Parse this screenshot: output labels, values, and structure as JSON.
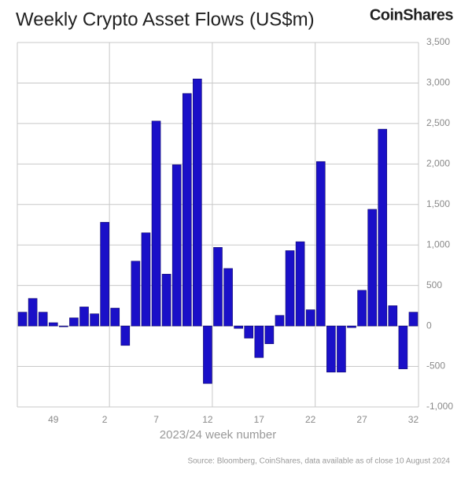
{
  "chart_data": {
    "type": "bar",
    "title": "Weekly Crypto Asset Flows (US$m)",
    "brand": "CoinShares",
    "x_label": "2023/24 week number",
    "source": "Source: Bloomberg, CoinShares, data available as of close 10 August 2024",
    "categories": [
      null,
      null,
      null,
      "49",
      null,
      null,
      null,
      null,
      "2",
      null,
      null,
      null,
      null,
      "7",
      null,
      null,
      null,
      null,
      "12",
      null,
      null,
      null,
      null,
      "17",
      null,
      null,
      null,
      null,
      "22",
      null,
      null,
      null,
      null,
      "27",
      null,
      null,
      null,
      null,
      "32"
    ],
    "values": [
      170,
      340,
      170,
      40,
      -10,
      100,
      235,
      150,
      1280,
      220,
      -240,
      800,
      1150,
      2530,
      640,
      1990,
      2870,
      3050,
      -710,
      970,
      710,
      -30,
      -150,
      -390,
      -220,
      130,
      930,
      1040,
      200,
      2030,
      -570,
      -570,
      -20,
      440,
      1440,
      2430,
      250,
      -530,
      170
    ],
    "color": "#1a10c8",
    "ylim": [
      -1000,
      3500
    ],
    "yticks": [
      {
        "value": -1000,
        "label": "-1,000"
      },
      -500,
      0,
      500,
      {
        "value": 1000,
        "label": "1,000"
      },
      {
        "value": 1500,
        "label": "1,500"
      },
      {
        "value": 2000,
        "label": "2,000"
      },
      {
        "value": 2500,
        "label": "2,500"
      },
      {
        "value": 3000,
        "label": "3,000"
      },
      {
        "value": 3500,
        "label": "3,500"
      }
    ],
    "grid": true
  }
}
